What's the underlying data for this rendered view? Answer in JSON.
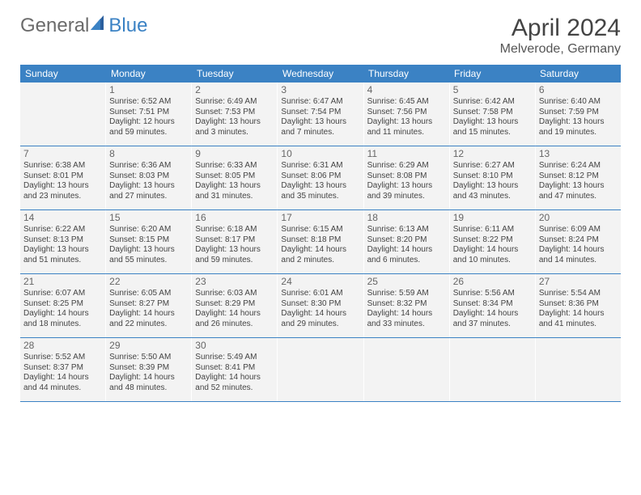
{
  "logo": {
    "general": "General",
    "blue": "Blue"
  },
  "title": "April 2024",
  "location": "Melverode, Germany",
  "colors": {
    "header_bg": "#3b82c4",
    "cell_bg": "#f3f3f3",
    "border": "#3b82c4",
    "text": "#444",
    "logo_gray": "#6b6b6b",
    "logo_blue": "#3b82c4"
  },
  "weekdays": [
    "Sunday",
    "Monday",
    "Tuesday",
    "Wednesday",
    "Thursday",
    "Friday",
    "Saturday"
  ],
  "weeks": [
    [
      null,
      {
        "n": "1",
        "sr": "Sunrise: 6:52 AM",
        "ss": "Sunset: 7:51 PM",
        "dl": "Daylight: 12 hours and 59 minutes."
      },
      {
        "n": "2",
        "sr": "Sunrise: 6:49 AM",
        "ss": "Sunset: 7:53 PM",
        "dl": "Daylight: 13 hours and 3 minutes."
      },
      {
        "n": "3",
        "sr": "Sunrise: 6:47 AM",
        "ss": "Sunset: 7:54 PM",
        "dl": "Daylight: 13 hours and 7 minutes."
      },
      {
        "n": "4",
        "sr": "Sunrise: 6:45 AM",
        "ss": "Sunset: 7:56 PM",
        "dl": "Daylight: 13 hours and 11 minutes."
      },
      {
        "n": "5",
        "sr": "Sunrise: 6:42 AM",
        "ss": "Sunset: 7:58 PM",
        "dl": "Daylight: 13 hours and 15 minutes."
      },
      {
        "n": "6",
        "sr": "Sunrise: 6:40 AM",
        "ss": "Sunset: 7:59 PM",
        "dl": "Daylight: 13 hours and 19 minutes."
      }
    ],
    [
      {
        "n": "7",
        "sr": "Sunrise: 6:38 AM",
        "ss": "Sunset: 8:01 PM",
        "dl": "Daylight: 13 hours and 23 minutes."
      },
      {
        "n": "8",
        "sr": "Sunrise: 6:36 AM",
        "ss": "Sunset: 8:03 PM",
        "dl": "Daylight: 13 hours and 27 minutes."
      },
      {
        "n": "9",
        "sr": "Sunrise: 6:33 AM",
        "ss": "Sunset: 8:05 PM",
        "dl": "Daylight: 13 hours and 31 minutes."
      },
      {
        "n": "10",
        "sr": "Sunrise: 6:31 AM",
        "ss": "Sunset: 8:06 PM",
        "dl": "Daylight: 13 hours and 35 minutes."
      },
      {
        "n": "11",
        "sr": "Sunrise: 6:29 AM",
        "ss": "Sunset: 8:08 PM",
        "dl": "Daylight: 13 hours and 39 minutes."
      },
      {
        "n": "12",
        "sr": "Sunrise: 6:27 AM",
        "ss": "Sunset: 8:10 PM",
        "dl": "Daylight: 13 hours and 43 minutes."
      },
      {
        "n": "13",
        "sr": "Sunrise: 6:24 AM",
        "ss": "Sunset: 8:12 PM",
        "dl": "Daylight: 13 hours and 47 minutes."
      }
    ],
    [
      {
        "n": "14",
        "sr": "Sunrise: 6:22 AM",
        "ss": "Sunset: 8:13 PM",
        "dl": "Daylight: 13 hours and 51 minutes."
      },
      {
        "n": "15",
        "sr": "Sunrise: 6:20 AM",
        "ss": "Sunset: 8:15 PM",
        "dl": "Daylight: 13 hours and 55 minutes."
      },
      {
        "n": "16",
        "sr": "Sunrise: 6:18 AM",
        "ss": "Sunset: 8:17 PM",
        "dl": "Daylight: 13 hours and 59 minutes."
      },
      {
        "n": "17",
        "sr": "Sunrise: 6:15 AM",
        "ss": "Sunset: 8:18 PM",
        "dl": "Daylight: 14 hours and 2 minutes."
      },
      {
        "n": "18",
        "sr": "Sunrise: 6:13 AM",
        "ss": "Sunset: 8:20 PM",
        "dl": "Daylight: 14 hours and 6 minutes."
      },
      {
        "n": "19",
        "sr": "Sunrise: 6:11 AM",
        "ss": "Sunset: 8:22 PM",
        "dl": "Daylight: 14 hours and 10 minutes."
      },
      {
        "n": "20",
        "sr": "Sunrise: 6:09 AM",
        "ss": "Sunset: 8:24 PM",
        "dl": "Daylight: 14 hours and 14 minutes."
      }
    ],
    [
      {
        "n": "21",
        "sr": "Sunrise: 6:07 AM",
        "ss": "Sunset: 8:25 PM",
        "dl": "Daylight: 14 hours and 18 minutes."
      },
      {
        "n": "22",
        "sr": "Sunrise: 6:05 AM",
        "ss": "Sunset: 8:27 PM",
        "dl": "Daylight: 14 hours and 22 minutes."
      },
      {
        "n": "23",
        "sr": "Sunrise: 6:03 AM",
        "ss": "Sunset: 8:29 PM",
        "dl": "Daylight: 14 hours and 26 minutes."
      },
      {
        "n": "24",
        "sr": "Sunrise: 6:01 AM",
        "ss": "Sunset: 8:30 PM",
        "dl": "Daylight: 14 hours and 29 minutes."
      },
      {
        "n": "25",
        "sr": "Sunrise: 5:59 AM",
        "ss": "Sunset: 8:32 PM",
        "dl": "Daylight: 14 hours and 33 minutes."
      },
      {
        "n": "26",
        "sr": "Sunrise: 5:56 AM",
        "ss": "Sunset: 8:34 PM",
        "dl": "Daylight: 14 hours and 37 minutes."
      },
      {
        "n": "27",
        "sr": "Sunrise: 5:54 AM",
        "ss": "Sunset: 8:36 PM",
        "dl": "Daylight: 14 hours and 41 minutes."
      }
    ],
    [
      {
        "n": "28",
        "sr": "Sunrise: 5:52 AM",
        "ss": "Sunset: 8:37 PM",
        "dl": "Daylight: 14 hours and 44 minutes."
      },
      {
        "n": "29",
        "sr": "Sunrise: 5:50 AM",
        "ss": "Sunset: 8:39 PM",
        "dl": "Daylight: 14 hours and 48 minutes."
      },
      {
        "n": "30",
        "sr": "Sunrise: 5:49 AM",
        "ss": "Sunset: 8:41 PM",
        "dl": "Daylight: 14 hours and 52 minutes."
      },
      null,
      null,
      null,
      null
    ]
  ]
}
